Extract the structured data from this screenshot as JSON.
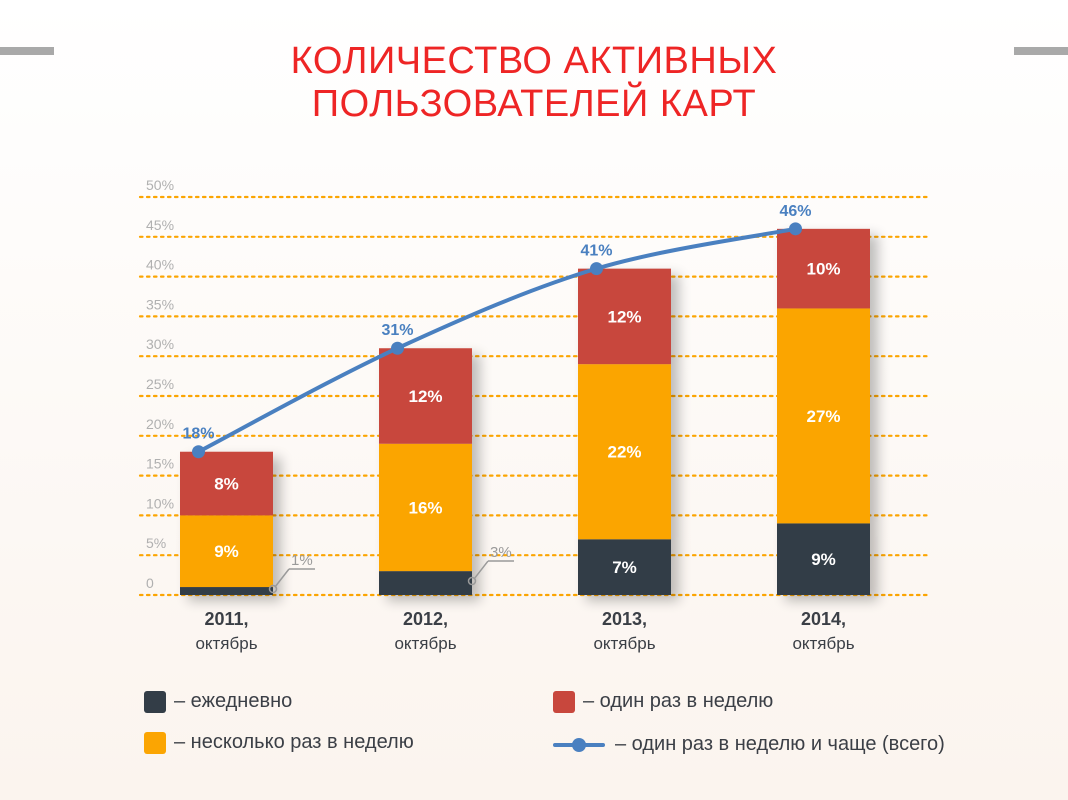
{
  "title_lines": [
    "КОЛИЧЕСТВО АКТИВНЫХ",
    "ПОЛЬЗОВАТЕЛЕЙ КАРТ"
  ],
  "colors": {
    "title": "#ee2525",
    "daily": "#333d47",
    "several": "#fba502",
    "weekly": "#c8473d",
    "total": "#4a80c0",
    "grid": "#fba502"
  },
  "legend": {
    "daily": "– ежедневно",
    "several": "– несколько раз в неделю",
    "weekly": "– один раз в неделю",
    "total": "– один раз в неделю и чаще (всего)"
  },
  "chart_data": {
    "type": "bar",
    "stacked": true,
    "categories": [
      {
        "year": "2011,",
        "sub": "октябрь"
      },
      {
        "year": "2012,",
        "sub": "октябрь"
      },
      {
        "year": "2013,",
        "sub": "октябрь"
      },
      {
        "year": "2014,",
        "sub": "октябрь"
      }
    ],
    "series": [
      {
        "key": "daily",
        "values": [
          1,
          3,
          7,
          9
        ],
        "labels": [
          "1%",
          "3%",
          "7%",
          "9%"
        ]
      },
      {
        "key": "several",
        "values": [
          9,
          16,
          22,
          27
        ],
        "labels": [
          "9%",
          "16%",
          "22%",
          "27%"
        ]
      },
      {
        "key": "weekly",
        "values": [
          8,
          12,
          12,
          10
        ],
        "labels": [
          "8%",
          "12%",
          "12%",
          "10%"
        ]
      }
    ],
    "line": {
      "key": "total",
      "values": [
        18,
        31,
        41,
        46
      ],
      "labels": [
        "18%",
        "31%",
        "41%",
        "46%"
      ]
    },
    "ylim": [
      0,
      50
    ],
    "yticks": [
      "0",
      "5%",
      "10%",
      "15%",
      "20%",
      "25%",
      "30%",
      "35%",
      "40%",
      "45%",
      "50%"
    ],
    "grid": true,
    "legend_position": "bottom"
  }
}
